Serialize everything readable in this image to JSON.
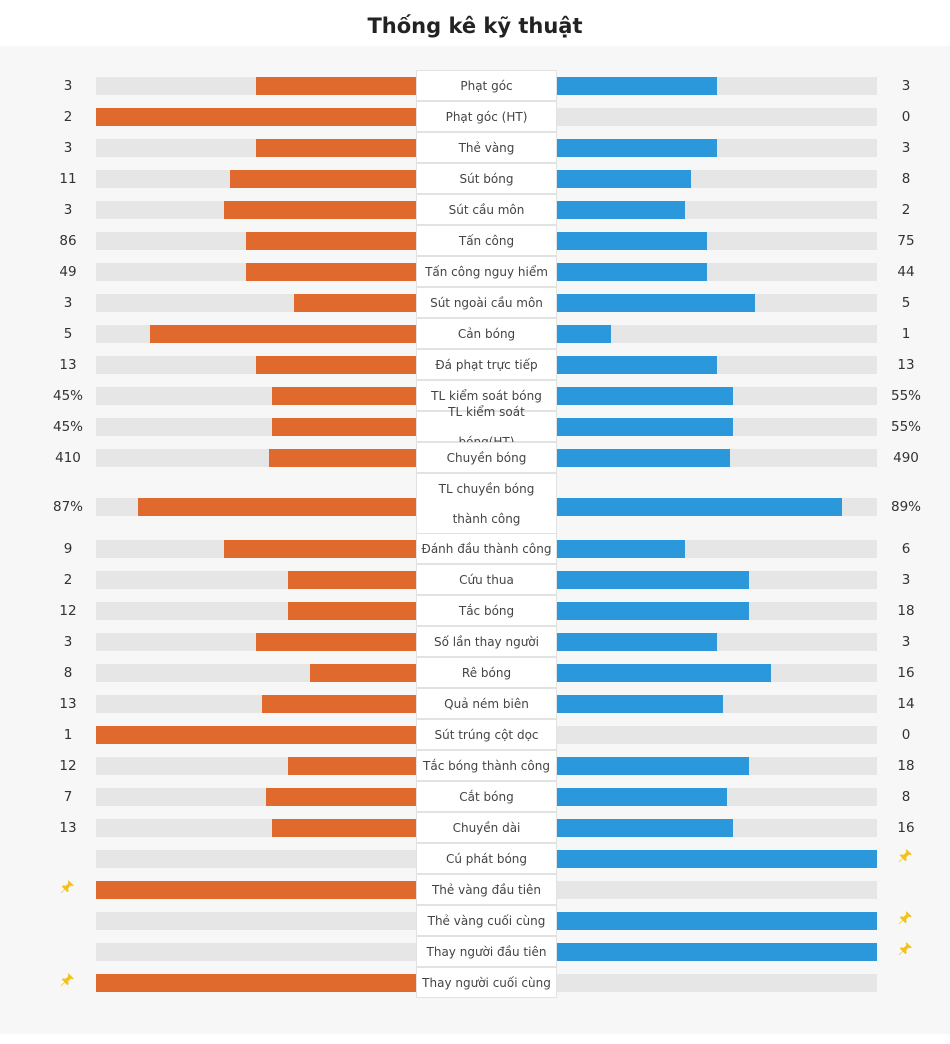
{
  "title": "Thống kê kỹ thuật",
  "colors": {
    "home": "#e06a2d",
    "away": "#2a98db",
    "track": "#e6e6e6",
    "pin": "#f2c21b"
  },
  "stats": [
    {
      "label": "Phạt góc",
      "home": "3",
      "away": "3",
      "home_ratio": 0.5,
      "away_ratio": 0.5
    },
    {
      "label": "Phạt góc (HT)",
      "home": "2",
      "away": "0",
      "home_ratio": 1.0,
      "away_ratio": 0.0
    },
    {
      "label": "Thẻ vàng",
      "home": "3",
      "away": "3",
      "home_ratio": 0.5,
      "away_ratio": 0.5
    },
    {
      "label": "Sút bóng",
      "home": "11",
      "away": "8",
      "home_ratio": 0.58,
      "away_ratio": 0.42
    },
    {
      "label": "Sút cầu môn",
      "home": "3",
      "away": "2",
      "home_ratio": 0.6,
      "away_ratio": 0.4
    },
    {
      "label": "Tấn công",
      "home": "86",
      "away": "75",
      "home_ratio": 0.53,
      "away_ratio": 0.47
    },
    {
      "label": "Tấn công nguy hiểm",
      "home": "49",
      "away": "44",
      "home_ratio": 0.53,
      "away_ratio": 0.47
    },
    {
      "label": "Sút ngoài cầu môn",
      "home": "3",
      "away": "5",
      "home_ratio": 0.38,
      "away_ratio": 0.62
    },
    {
      "label": "Cản bóng",
      "home": "5",
      "away": "1",
      "home_ratio": 0.83,
      "away_ratio": 0.17
    },
    {
      "label": "Đá phạt trực tiếp",
      "home": "13",
      "away": "13",
      "home_ratio": 0.5,
      "away_ratio": 0.5
    },
    {
      "label": "TL kiểm soát bóng",
      "home": "45%",
      "away": "55%",
      "home_ratio": 0.45,
      "away_ratio": 0.55
    },
    {
      "label": "TL kiểm soát bóng(HT)",
      "home": "45%",
      "away": "55%",
      "home_ratio": 0.45,
      "away_ratio": 0.55
    },
    {
      "label": "Chuyền bóng",
      "home": "410",
      "away": "490",
      "home_ratio": 0.46,
      "away_ratio": 0.54
    },
    {
      "label": "TL chuyền bóng thành công",
      "home": "87%",
      "away": "89%",
      "home_ratio": 0.87,
      "away_ratio": 0.89,
      "tall": true
    },
    {
      "label": "Đánh đầu thành công",
      "home": "9",
      "away": "6",
      "home_ratio": 0.6,
      "away_ratio": 0.4
    },
    {
      "label": "Cứu thua",
      "home": "2",
      "away": "3",
      "home_ratio": 0.4,
      "away_ratio": 0.6
    },
    {
      "label": "Tắc bóng",
      "home": "12",
      "away": "18",
      "home_ratio": 0.4,
      "away_ratio": 0.6
    },
    {
      "label": "Số lần thay người",
      "home": "3",
      "away": "3",
      "home_ratio": 0.5,
      "away_ratio": 0.5
    },
    {
      "label": "Rê bóng",
      "home": "8",
      "away": "16",
      "home_ratio": 0.33,
      "away_ratio": 0.67
    },
    {
      "label": "Quả ném biên",
      "home": "13",
      "away": "14",
      "home_ratio": 0.48,
      "away_ratio": 0.52
    },
    {
      "label": "Sút trúng cột dọc",
      "home": "1",
      "away": "0",
      "home_ratio": 1.0,
      "away_ratio": 0.0
    },
    {
      "label": "Tắc bóng thành công",
      "home": "12",
      "away": "18",
      "home_ratio": 0.4,
      "away_ratio": 0.6
    },
    {
      "label": "Cắt bóng",
      "home": "7",
      "away": "8",
      "home_ratio": 0.47,
      "away_ratio": 0.53
    },
    {
      "label": "Chuyền dài",
      "home": "13",
      "away": "16",
      "home_ratio": 0.45,
      "away_ratio": 0.55
    },
    {
      "label": "Cú phát bóng",
      "home": "",
      "away": "",
      "home_ratio": 0.0,
      "away_ratio": 1.0,
      "pin": "away"
    },
    {
      "label": "Thẻ vàng đầu tiên",
      "home": "",
      "away": "",
      "home_ratio": 1.0,
      "away_ratio": 0.0,
      "pin": "home"
    },
    {
      "label": "Thẻ vàng cuối cùng",
      "home": "",
      "away": "",
      "home_ratio": 0.0,
      "away_ratio": 1.0,
      "pin": "away"
    },
    {
      "label": "Thay người đầu tiên",
      "home": "",
      "away": "",
      "home_ratio": 0.0,
      "away_ratio": 1.0,
      "pin": "away"
    },
    {
      "label": "Thay người cuối cùng",
      "home": "",
      "away": "",
      "home_ratio": 1.0,
      "away_ratio": 0.0,
      "pin": "home"
    }
  ]
}
